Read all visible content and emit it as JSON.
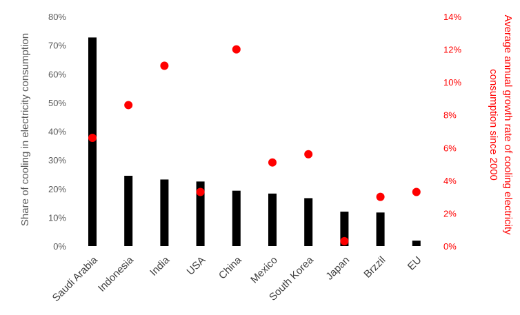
{
  "chart_data": {
    "type": "bar",
    "categories": [
      "Saudi Arabia",
      "Indonesia",
      "India",
      "USA",
      "China",
      "Mexico",
      "South Korea",
      "Japan",
      "Brzzil",
      "EU"
    ],
    "series": [
      {
        "type": "bar",
        "axis": "left",
        "color": "#000000",
        "values": [
          72.7,
          24.5,
          23.2,
          22.5,
          19.3,
          18.3,
          16.7,
          12.0,
          11.7,
          1.9
        ]
      },
      {
        "type": "scatter",
        "axis": "right",
        "color": "#ff0000",
        "values": [
          6.6,
          8.6,
          11.0,
          3.3,
          12.0,
          5.1,
          5.6,
          0.3,
          3.0,
          3.3
        ]
      }
    ],
    "ylabel": "Share of cooling in electricity consumption",
    "ylabel_right_lines": [
      "Average annual growth rate of cooling electricity",
      "consumption since 2000"
    ],
    "ylim": [
      0,
      80
    ],
    "ylim_right": [
      0,
      14
    ],
    "yticks": [
      "0%",
      "10%",
      "20%",
      "30%",
      "40%",
      "50%",
      "60%",
      "70%",
      "80%"
    ],
    "yticks_right": [
      "0%",
      "2%",
      "4%",
      "6%",
      "8%",
      "10%",
      "12%",
      "14%"
    ],
    "grid": false,
    "legend": "none",
    "left_axis_color": "#595959",
    "right_axis_color": "#ff0000"
  }
}
